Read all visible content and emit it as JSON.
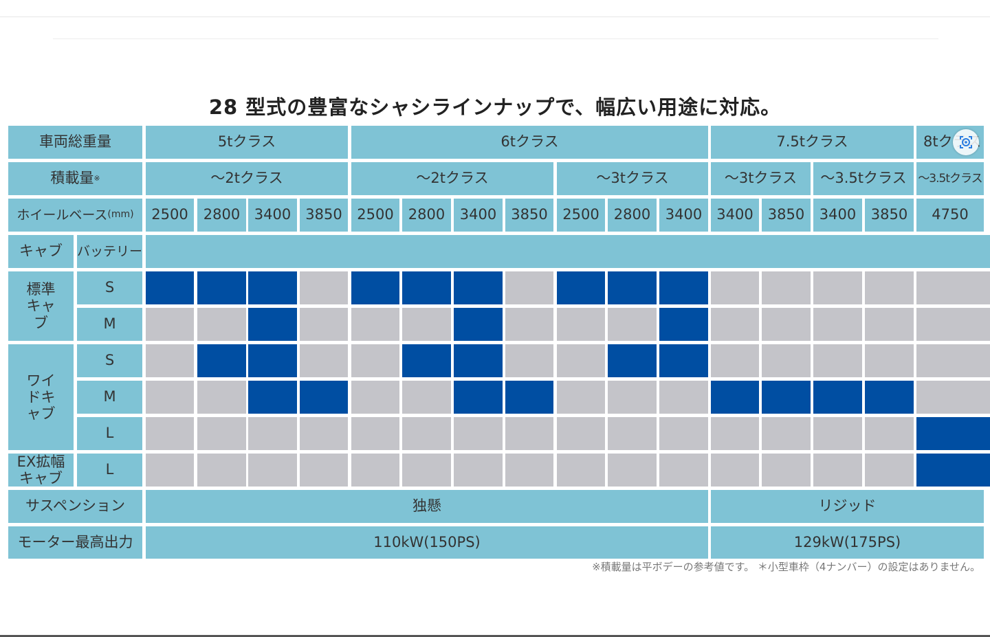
{
  "heading": "28 型式の豊富なシャシラインナップで、幅広い用途に対応。",
  "row_labels": {
    "gvw": "車両総重量",
    "payload": "積載量",
    "payload_mark": "※",
    "wheelbase": "ホイールベース",
    "wheelbase_unit": "(mm)",
    "cab": "キャブ",
    "battery": "バッテリー",
    "suspension": "サスペンション",
    "motor": "モーター最高出力"
  },
  "gvw_classes": [
    "5tクラス",
    "6tクラス",
    "7.5tクラス",
    "8tクラス"
  ],
  "payload_classes": [
    "～2tクラス",
    "～2tクラス",
    "～3tクラス",
    "～3tクラス",
    "～3.5tクラス",
    "～3.5tクラス"
  ],
  "wheelbases": [
    "2500",
    "2800",
    "3400",
    "3850",
    "2500",
    "2800",
    "3400",
    "3850",
    "2500",
    "2800",
    "3400",
    "3400",
    "3850",
    "3400",
    "3850",
    "4750"
  ],
  "cab_groups": [
    "標準キャブ",
    "ワイドキャブ",
    "EX拡幅キャブ"
  ],
  "battery_sizes": [
    "S",
    "M",
    "S",
    "M",
    "L",
    "L"
  ],
  "availability": [
    [
      1,
      1,
      1,
      0,
      1,
      1,
      1,
      0,
      1,
      1,
      1,
      0,
      0,
      0,
      0,
      0
    ],
    [
      0,
      0,
      1,
      0,
      0,
      0,
      1,
      0,
      0,
      0,
      1,
      0,
      0,
      0,
      0,
      0
    ],
    [
      0,
      1,
      1,
      0,
      0,
      1,
      1,
      0,
      0,
      1,
      1,
      0,
      0,
      0,
      0,
      0
    ],
    [
      0,
      0,
      1,
      1,
      0,
      0,
      1,
      1,
      0,
      0,
      0,
      1,
      1,
      1,
      1,
      0
    ],
    [
      0,
      0,
      0,
      0,
      0,
      0,
      0,
      0,
      0,
      0,
      0,
      0,
      0,
      0,
      0,
      1
    ],
    [
      0,
      0,
      0,
      0,
      0,
      0,
      0,
      0,
      0,
      0,
      0,
      0,
      0,
      0,
      0,
      1
    ]
  ],
  "suspension": [
    "独懸",
    "リジッド"
  ],
  "motor_output": [
    "110kW(150PS)",
    "129kW(175PS)"
  ],
  "footnote": "※積載量は平ボデーの参考値です。 ＊小型車枠（4ナンバー）の設定はありません。",
  "colors": {
    "header": "#7fc3d5",
    "available": "#004ea2",
    "unavailable": "#c4c4c9"
  },
  "icons": {
    "overlay": "camera-search-icon"
  }
}
